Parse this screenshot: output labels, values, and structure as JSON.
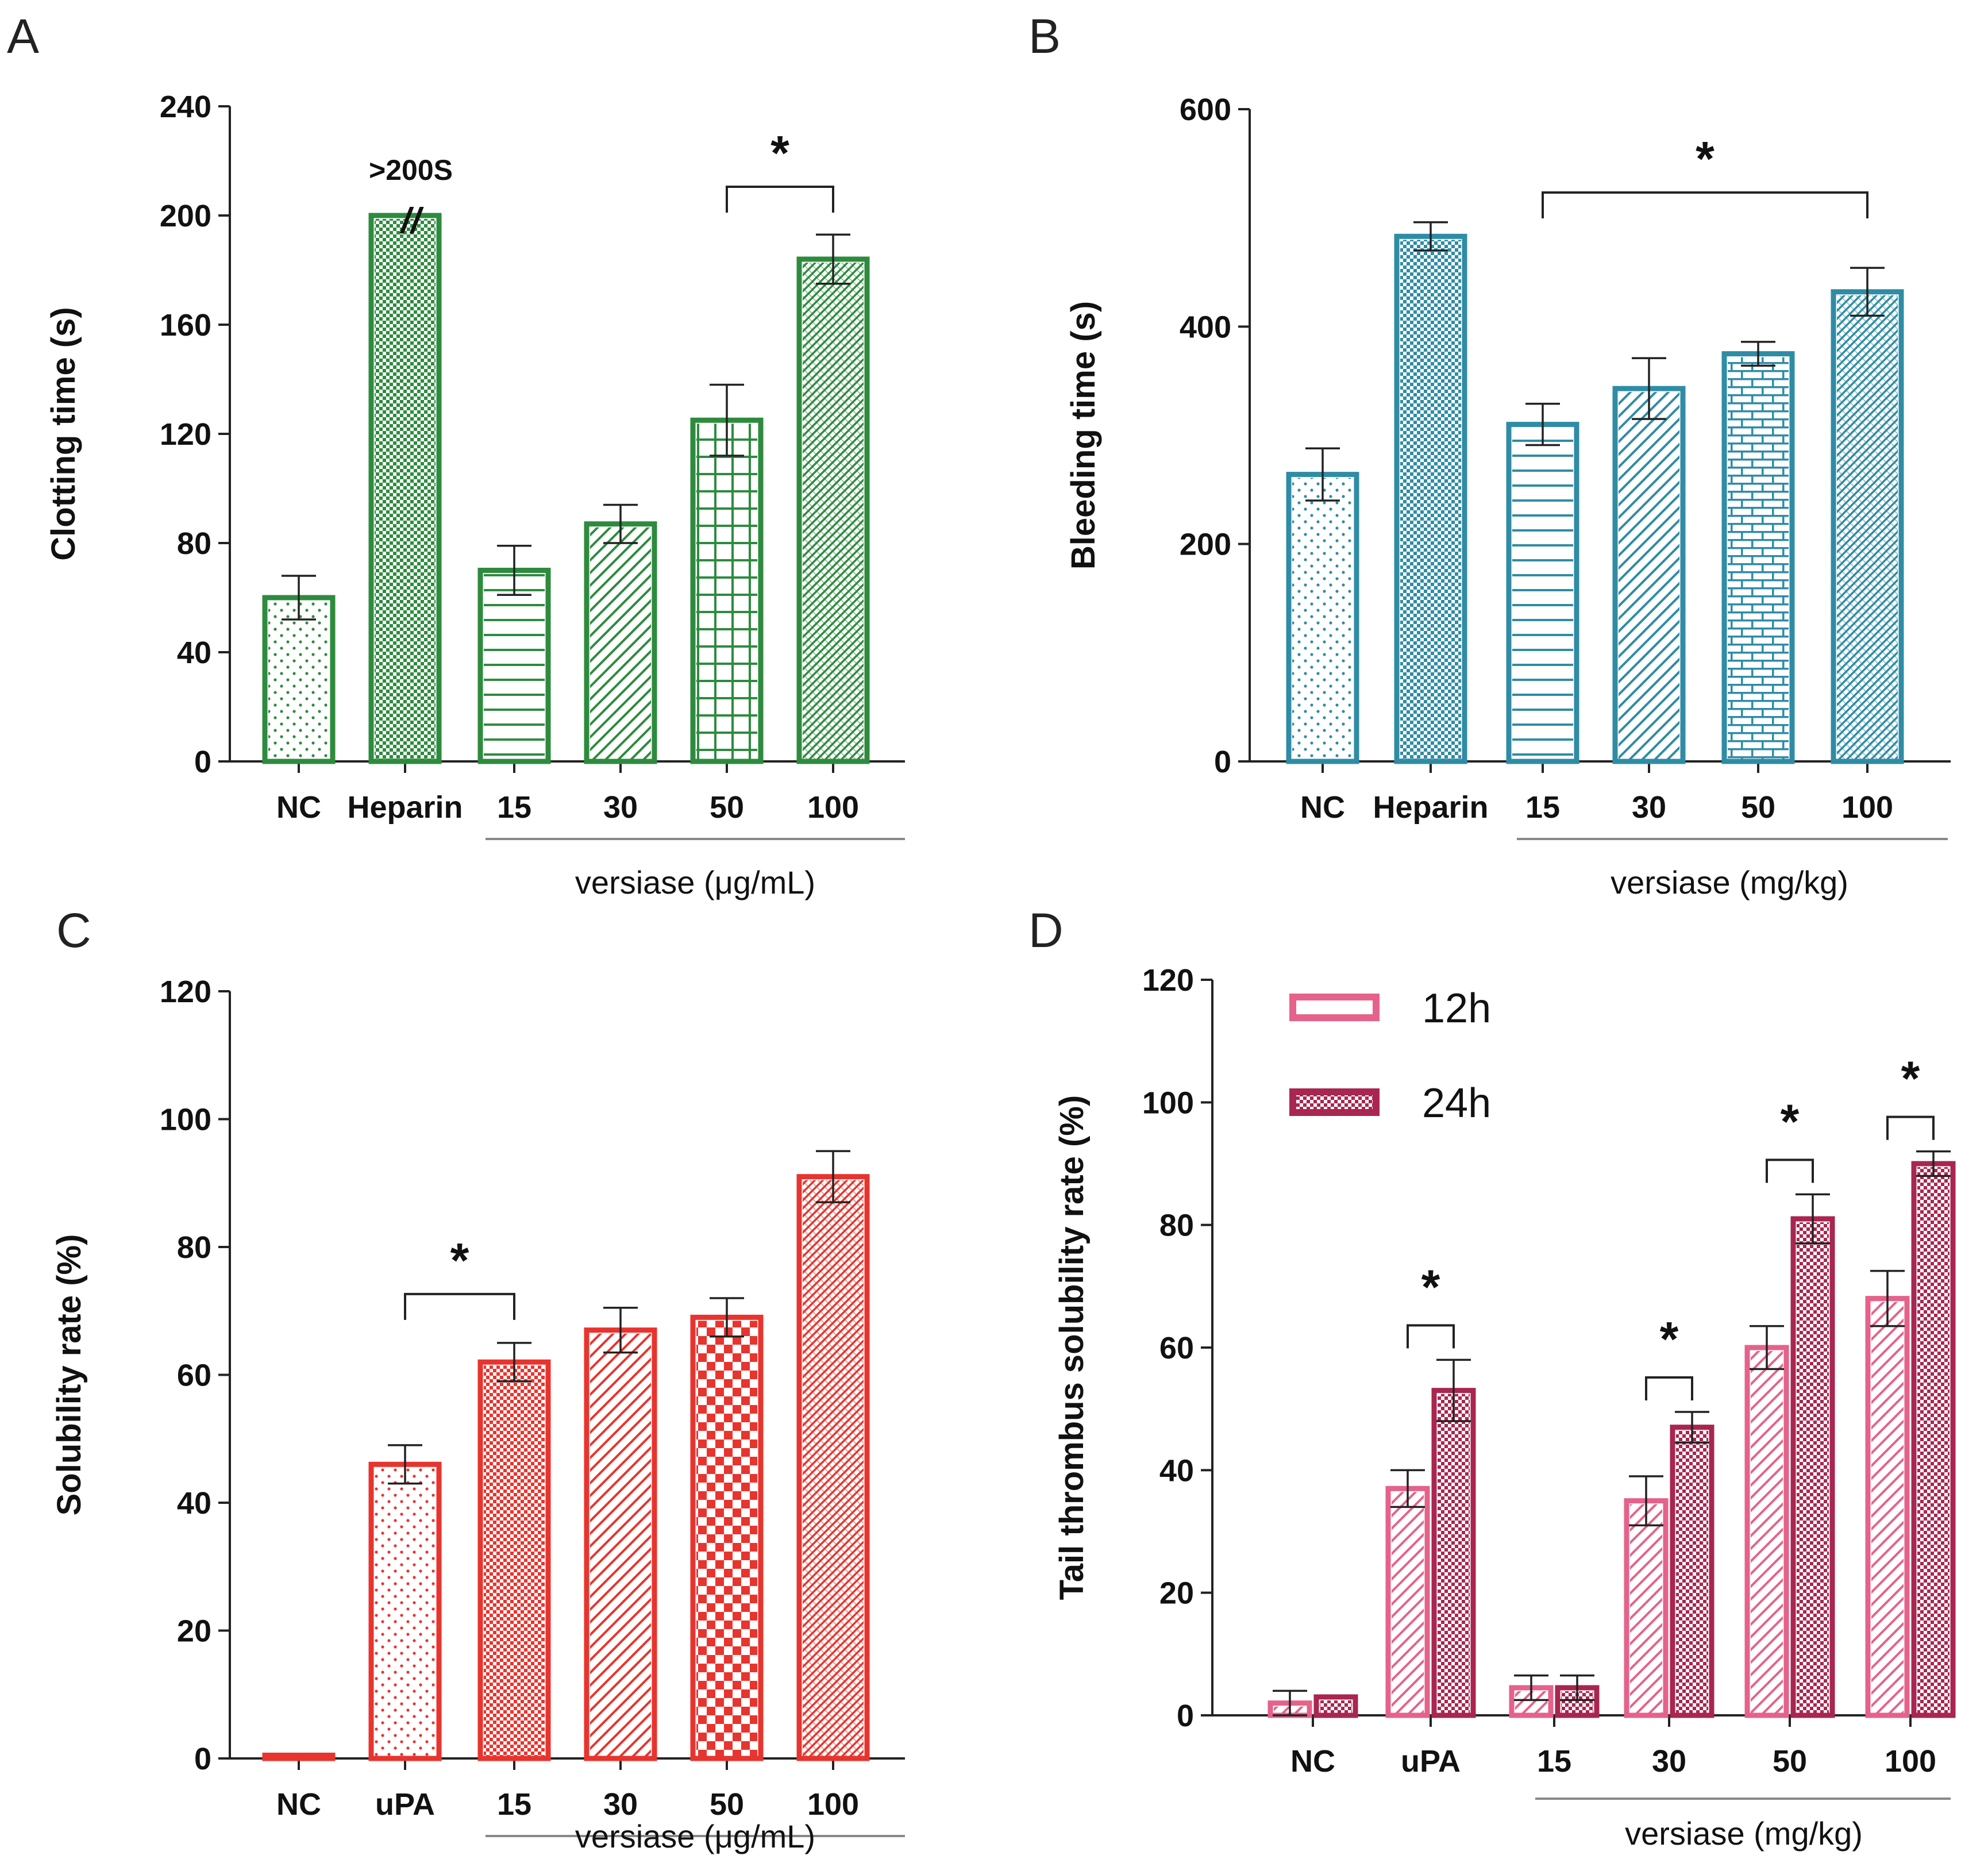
{
  "chart_data": [
    {
      "panel": "A",
      "type": "bar",
      "ylabel": "Clotting time (s)",
      "ylim": [
        0,
        240
      ],
      "yticks": [
        0,
        40,
        80,
        120,
        160,
        200,
        240
      ],
      "categories": [
        "NC",
        "Heparin",
        "15",
        "30",
        "50",
        "100"
      ],
      "values": [
        60,
        200,
        70,
        87,
        125,
        184
      ],
      "errors": [
        8,
        0,
        9,
        7,
        13,
        9
      ],
      "patterns": [
        "dots",
        "checker",
        "hlines",
        "diag",
        "grid",
        "dense"
      ],
      "color": "#2e8b3e",
      "group_label": "versiase (μg/mL)",
      "group_start": 2,
      "annotation": {
        "text": ">200S",
        "break_mark": "//",
        "bar": 1
      },
      "significance": [
        {
          "from": 4,
          "to": 5,
          "text": "*"
        }
      ]
    },
    {
      "panel": "B",
      "type": "bar",
      "ylabel": "Bleeding time (s)",
      "ylim": [
        0,
        600
      ],
      "yticks": [
        0,
        200,
        400,
        600
      ],
      "categories": [
        "NC",
        "Heparin",
        "15",
        "30",
        "50",
        "100"
      ],
      "values": [
        264,
        483,
        310,
        343,
        375,
        432
      ],
      "errors": [
        24,
        13,
        19,
        28,
        11,
        22
      ],
      "patterns": [
        "dots",
        "checker",
        "hlines",
        "diag",
        "brick",
        "dense"
      ],
      "color": "#2f8ca4",
      "group_label": "versiase (mg/kg)",
      "group_start": 2,
      "significance": [
        {
          "from": 2,
          "to": 5,
          "text": "*"
        }
      ]
    },
    {
      "panel": "C",
      "type": "bar",
      "ylabel": "Solubility rate (%)",
      "ylim": [
        0,
        120
      ],
      "yticks": [
        0,
        20,
        40,
        60,
        80,
        100,
        120
      ],
      "categories": [
        "NC",
        "uPA",
        "15",
        "30",
        "50",
        "100"
      ],
      "values": [
        0.5,
        46,
        62,
        67,
        69,
        91
      ],
      "errors": [
        0,
        3,
        3,
        3.5,
        3,
        4
      ],
      "patterns": [
        "none",
        "dots",
        "checker",
        "diag",
        "bigcheck",
        "dense"
      ],
      "color": "#e8342e",
      "group_label": "versiase (μg/mL)",
      "group_start": 2,
      "significance": [
        {
          "from": 1,
          "to": 2,
          "text": "*"
        }
      ]
    },
    {
      "panel": "D",
      "type": "bar",
      "ylabel": "Tail thrombus solubility rate (%)",
      "ylim": [
        0,
        120
      ],
      "yticks": [
        0,
        20,
        40,
        60,
        80,
        100,
        120
      ],
      "categories": [
        "NC",
        "uPA",
        "15",
        "30",
        "50",
        "100"
      ],
      "series": [
        {
          "name": "12h",
          "values": [
            2,
            37,
            4.5,
            35,
            60,
            68
          ],
          "errors": [
            2,
            3,
            2,
            4,
            3.5,
            4.5
          ],
          "color": "#e5628a"
        },
        {
          "name": "24h",
          "values": [
            3,
            53,
            4.5,
            47,
            81,
            90
          ],
          "errors": [
            0,
            5,
            2,
            2.5,
            4,
            2
          ],
          "color": "#a8264f"
        }
      ],
      "group_label": "versiase (mg/kg)",
      "group_start": 2,
      "significance": [
        {
          "category": 1,
          "text": "*"
        },
        {
          "category": 3,
          "text": "*"
        },
        {
          "category": 4,
          "text": "*"
        },
        {
          "category": 5,
          "text": "*"
        }
      ]
    }
  ]
}
